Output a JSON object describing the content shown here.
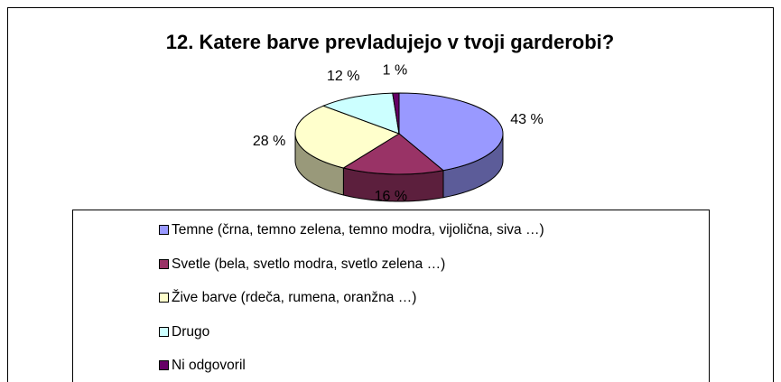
{
  "chart_data": {
    "type": "pie3d",
    "title": "12. Katere barve prevladujejo v tvoji garderobi?",
    "categories": [
      "Temne (črna, temno zelena, temno modra, vijolična, siva …)",
      "Svetle (bela, svetlo modra, svetlo zelena …)",
      "Žive barve (rdeča, rumena, oranžna …)",
      "Drugo",
      "Ni odgovoril"
    ],
    "values": [
      43,
      16,
      28,
      12,
      1
    ],
    "value_labels": [
      "43 %",
      "16 %",
      "28 %",
      "12 %",
      "1 %"
    ],
    "colors": [
      "#9999ff",
      "#993366",
      "#ffffcc",
      "#ccffff",
      "#660066"
    ]
  }
}
